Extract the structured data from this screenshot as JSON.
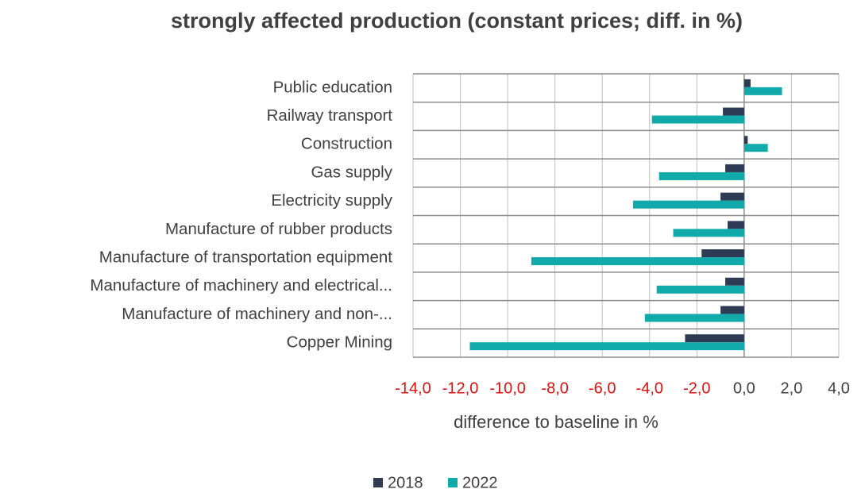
{
  "chart_data": {
    "type": "hbar",
    "title": "strongly affected production  (constant prices; diff. in %)",
    "x_label": "difference to baseline in %",
    "categories": [
      "Public education",
      "Railway transport",
      "Construction",
      "Gas supply",
      "Electricity supply",
      "Manufacture of rubber products",
      "Manufacture of transportation equipment",
      "Manufacture of machinery and electrical...",
      "Manufacture of machinery and non-...",
      "Copper Mining"
    ],
    "series": [
      {
        "name": "2018",
        "color": "#2e3b55",
        "values": [
          0.27,
          -0.9,
          0.15,
          -0.8,
          -1.0,
          -0.7,
          -1.8,
          -0.8,
          -1.0,
          -2.5
        ]
      },
      {
        "name": "2022",
        "color": "#12a9ab",
        "values": [
          1.6,
          -3.9,
          1.0,
          -3.6,
          -4.7,
          -3.0,
          -9.0,
          -3.7,
          -4.2,
          -11.6
        ]
      }
    ],
    "xlim": [
      -14,
      4
    ],
    "xticks": [
      {
        "value": -14,
        "label": "-14,0"
      },
      {
        "value": -12,
        "label": "-12,0"
      },
      {
        "value": -10,
        "label": "-10,0"
      },
      {
        "value": -8,
        "label": "-8,0"
      },
      {
        "value": -6,
        "label": "-6,0"
      },
      {
        "value": -4,
        "label": "-4,0"
      },
      {
        "value": -2,
        "label": "-2,0"
      },
      {
        "value": 0,
        "label": "0,0"
      },
      {
        "value": 2,
        "label": "2,0"
      },
      {
        "value": 4,
        "label": "4,0"
      }
    ],
    "negative_tick_color": "#e01010",
    "grid": true,
    "legend": "bottom"
  }
}
